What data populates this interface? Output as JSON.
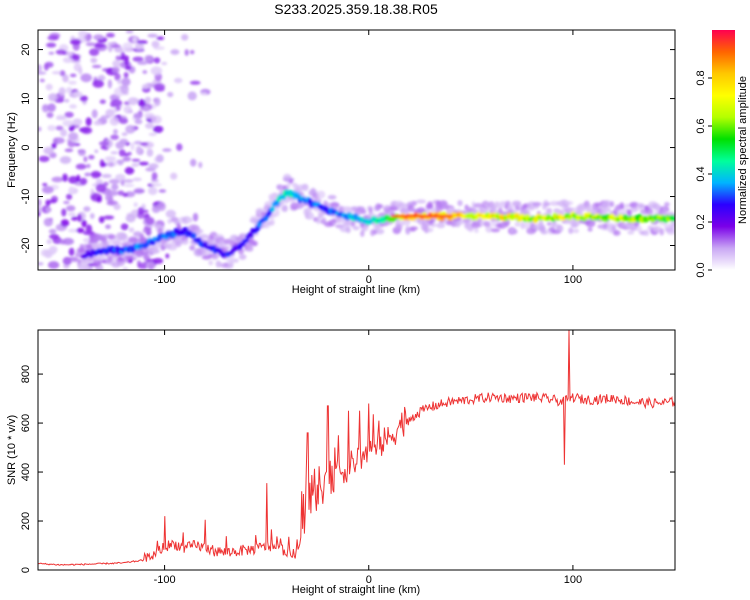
{
  "figure": {
    "title": "S233.2025.359.18.38.R05"
  },
  "chart_data": [
    {
      "type": "heatmap",
      "xlabel": "Height of straight line (km)",
      "ylabel": "Frequency (Hz)",
      "xlim": [
        -162,
        150
      ],
      "ylim": [
        -25,
        24
      ],
      "xticks": [
        -100,
        0,
        100
      ],
      "xtick_labels": [
        "-100",
        "0",
        "100"
      ],
      "yticks": [
        20,
        10,
        0,
        -10,
        -20
      ],
      "ytick_labels": [
        "20",
        "10",
        "0",
        "-10",
        "-20"
      ],
      "colorbar": {
        "label": "Normalized spectral amplitude",
        "range": [
          0.0,
          1.0
        ],
        "ticks": [
          0.0,
          0.2,
          0.4,
          0.6,
          0.8
        ],
        "tick_labels": [
          "0.0",
          "0.2",
          "0.4",
          "0.6",
          "0.8"
        ],
        "colormap": [
          "#ffffff",
          "#c9a6f4",
          "#7a00e8",
          "#2b00ff",
          "#00b4ff",
          "#00ff9a",
          "#00e000",
          "#b4ff00",
          "#ffff00",
          "#ffc800",
          "#ff6400",
          "#ff0050"
        ]
      },
      "ridge": {
        "x": [
          -140,
          -130,
          -120,
          -110,
          -100,
          -90,
          -80,
          -70,
          -60,
          -50,
          -45,
          -40,
          -35,
          -30,
          -25,
          -20,
          -10,
          0,
          10,
          20,
          40,
          60,
          80,
          100,
          120,
          150
        ],
        "frequency": [
          -22,
          -21,
          -21,
          -20,
          -18,
          -17,
          -20,
          -22,
          -19,
          -14,
          -11,
          -9,
          -10,
          -11,
          -12,
          -13,
          -14,
          -15,
          -14.5,
          -14,
          -14,
          -14,
          -14.5,
          -14,
          -14.5,
          -14.5
        ],
        "amplitude": [
          0.25,
          0.3,
          0.35,
          0.35,
          0.35,
          0.3,
          0.3,
          0.3,
          0.3,
          0.35,
          0.4,
          0.5,
          0.4,
          0.35,
          0.35,
          0.35,
          0.4,
          0.45,
          0.55,
          0.95,
          0.85,
          0.8,
          0.75,
          0.75,
          0.7,
          0.65
        ]
      },
      "grid": false
    },
    {
      "type": "line",
      "xlabel": "Height of straight line (km)",
      "ylabel": "SNR (10 * v/v)",
      "xlim": [
        -162,
        150
      ],
      "ylim": [
        0,
        980
      ],
      "xticks": [
        -100,
        0,
        100
      ],
      "xtick_labels": [
        "-100",
        "0",
        "100"
      ],
      "yticks": [
        0,
        200,
        400,
        600,
        800
      ],
      "ytick_labels": [
        "0",
        "200",
        "400",
        "600",
        "800"
      ],
      "color": "#ee3333",
      "series": [
        {
          "x": [
            -162,
            -150,
            -140,
            -130,
            -120,
            -110,
            -105,
            -100,
            -95,
            -90,
            -85,
            -80,
            -75,
            -70,
            -65,
            -60,
            -55,
            -50,
            -45,
            -40,
            -35,
            -33,
            -30,
            -25,
            -20,
            -15,
            -10,
            -5,
            0,
            5,
            10,
            15,
            20,
            25,
            30,
            40,
            50,
            60,
            70,
            80,
            90,
            95,
            98,
            100,
            105,
            110,
            120,
            130,
            140,
            150
          ],
          "values": [
            25,
            20,
            22,
            25,
            28,
            40,
            55,
            90,
            100,
            80,
            95,
            85,
            70,
            65,
            70,
            75,
            80,
            90,
            85,
            70,
            50,
            150,
            230,
            290,
            330,
            380,
            400,
            440,
            460,
            490,
            520,
            570,
            610,
            640,
            660,
            680,
            690,
            700,
            695,
            700,
            690,
            680,
            690,
            700,
            690,
            690,
            695,
            680,
            675,
            680
          ]
        }
      ],
      "peaks": [
        {
          "x": -100,
          "y": 220
        },
        {
          "x": -80,
          "y": 205
        },
        {
          "x": -50,
          "y": 355
        },
        {
          "x": -30,
          "y": 560
        },
        {
          "x": -20,
          "y": 670
        },
        {
          "x": -10,
          "y": 650
        },
        {
          "x": 0,
          "y": 680
        },
        {
          "x": 5,
          "y": 610
        },
        {
          "x": 98,
          "y": 980
        },
        {
          "x": 96,
          "y": 430
        }
      ],
      "grid": false
    }
  ]
}
